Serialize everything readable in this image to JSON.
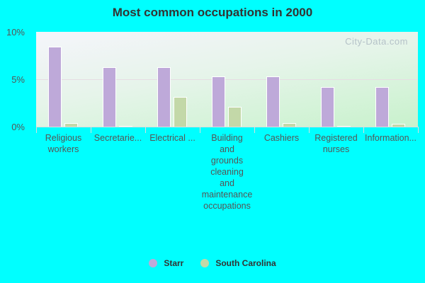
{
  "title": "Most common occupations in 2000",
  "watermark": "City-Data.com",
  "y_ticks": [
    "10%",
    "5%",
    "0%"
  ],
  "legend": [
    {
      "name": "Starr",
      "color": "#bea9d9"
    },
    {
      "name": "South Carolina",
      "color": "#c3d8a8"
    }
  ],
  "chart_data": {
    "type": "bar",
    "title": "Most common occupations in 2000",
    "xlabel": "",
    "ylabel": "",
    "ylim": [
      0,
      10
    ],
    "y_tick_labels": [
      "0%",
      "5%",
      "10%"
    ],
    "grid": true,
    "legend_position": "bottom",
    "categories": [
      "Religious workers",
      "Secretarie...",
      "Electrical ...",
      "Building and grounds cleaning and maintenance occupations",
      "Cashiers",
      "Registered nurses",
      "Information..."
    ],
    "series": [
      {
        "name": "Starr",
        "color": "#bea9d9",
        "values": [
          8.4,
          6.3,
          6.3,
          5.3,
          5.3,
          4.2,
          4.2
        ]
      },
      {
        "name": "South Carolina",
        "color": "#c3d8a8",
        "values": [
          0.4,
          0.1,
          3.1,
          2.1,
          0.35,
          0.1,
          0.3
        ]
      }
    ]
  },
  "x_labels": [
    "Religious\nworkers",
    "Secretarie...",
    "Electrical ...",
    "Building\nand\ngrounds\ncleaning\nand\nmaintenance\noccupations",
    "Cashiers",
    "Registered\nnurses",
    "Information..."
  ]
}
